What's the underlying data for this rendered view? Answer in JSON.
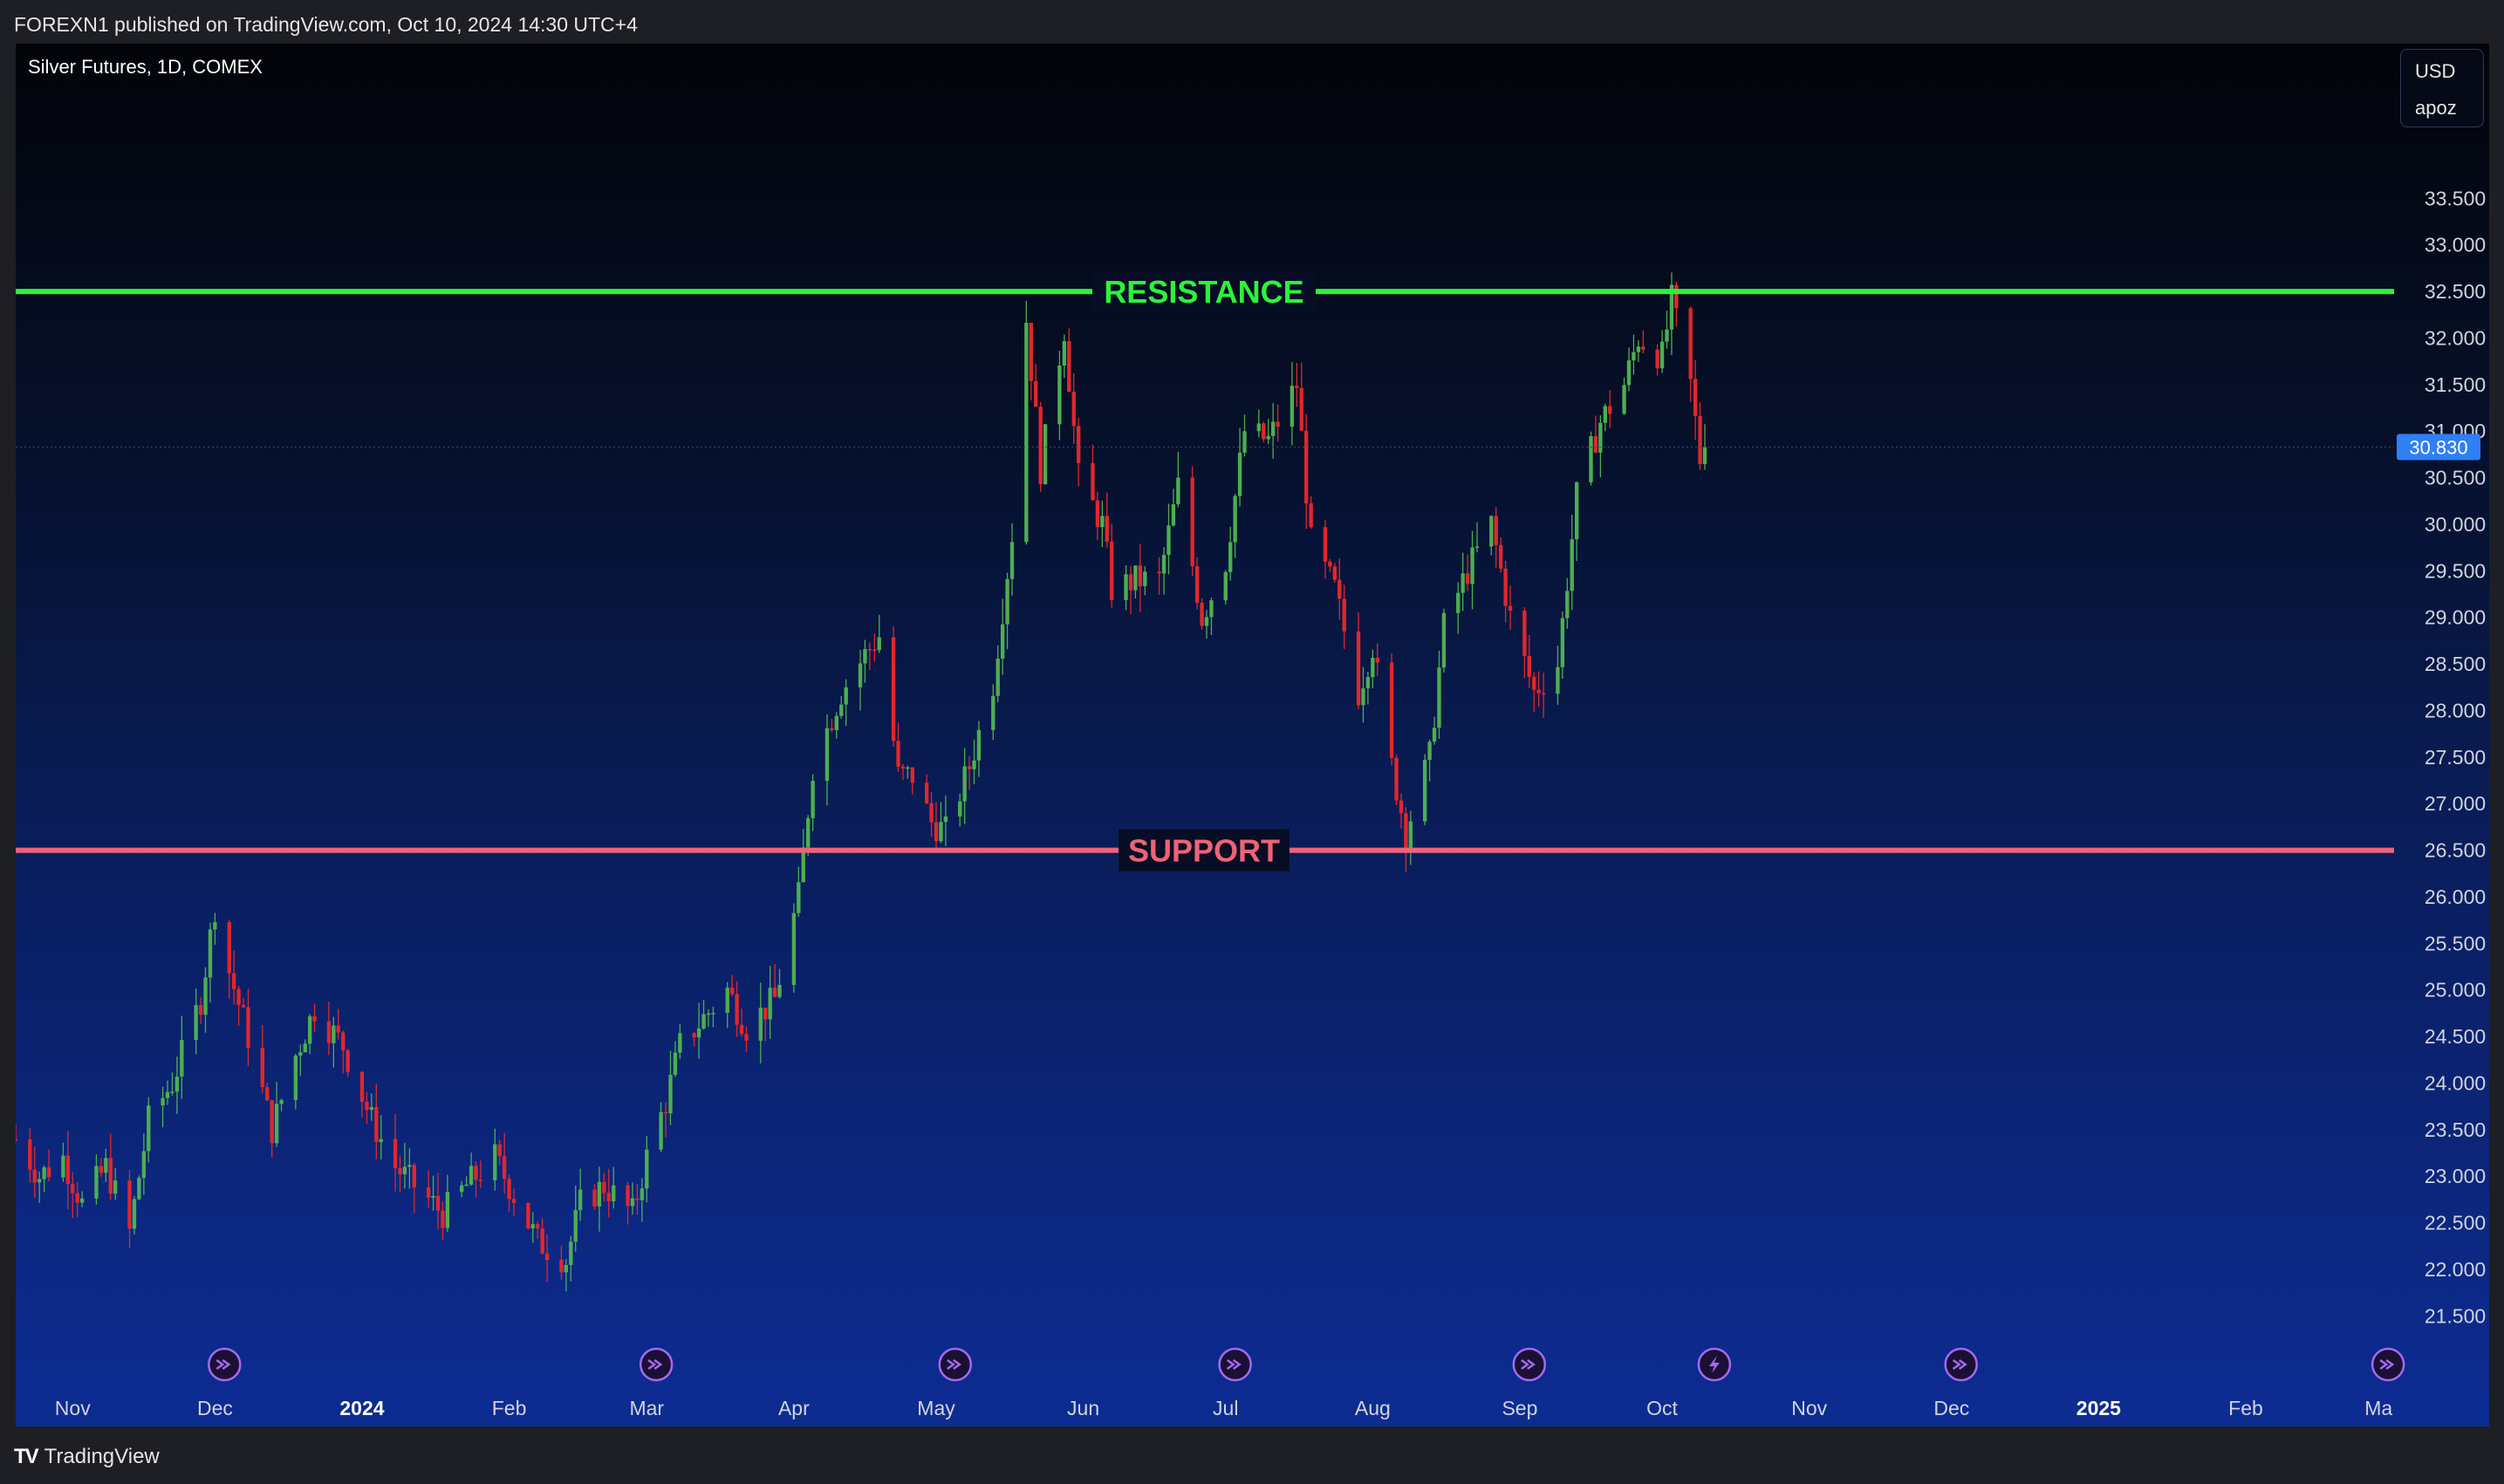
{
  "header": {
    "text": "FOREXN1 published on TradingView.com, Oct 10, 2024 14:30 UTC+4"
  },
  "symbol": {
    "label": "Silver Futures, 1D, COMEX"
  },
  "currency": {
    "code": "USD",
    "unit": "apoz"
  },
  "footer": {
    "brand": "TradingView",
    "logo": "TV"
  },
  "colors": {
    "up": "#4caf50",
    "down": "#e0272d",
    "resistance": "#2cf33a",
    "support": "#f06277",
    "last_price_bg": "#2f7ff5",
    "event_icon": "#a569f0"
  },
  "chart_data": {
    "type": "candlestick",
    "title": "Silver Futures, 1D, COMEX",
    "y_axis": {
      "ylim": [
        21.25,
        33.85
      ],
      "ticks": [
        "21.500",
        "22.000",
        "22.500",
        "23.000",
        "23.500",
        "24.000",
        "24.500",
        "25.000",
        "25.500",
        "26.000",
        "26.500",
        "27.000",
        "27.500",
        "28.000",
        "28.500",
        "29.000",
        "29.500",
        "30.000",
        "30.500",
        "31.000",
        "31.500",
        "32.000",
        "32.500",
        "33.000",
        "33.500"
      ]
    },
    "x_axis": {
      "labels": [
        {
          "text": "Nov",
          "bold": false
        },
        {
          "text": "Dec",
          "bold": false
        },
        {
          "text": "2024",
          "bold": true
        },
        {
          "text": "Feb",
          "bold": false
        },
        {
          "text": "Mar",
          "bold": false
        },
        {
          "text": "Apr",
          "bold": false
        },
        {
          "text": "May",
          "bold": false
        },
        {
          "text": "Jun",
          "bold": false
        },
        {
          "text": "Jul",
          "bold": false
        },
        {
          "text": "Aug",
          "bold": false
        },
        {
          "text": "Sep",
          "bold": false
        },
        {
          "text": "Oct",
          "bold": false
        },
        {
          "text": "Nov",
          "bold": false
        },
        {
          "text": "Dec",
          "bold": false
        },
        {
          "text": "2025",
          "bold": true
        },
        {
          "text": "Feb",
          "bold": false
        },
        {
          "text": "Ma",
          "bold": false
        }
      ],
      "range": [
        "2023-10-20",
        "2025-03-05"
      ]
    },
    "last_price": {
      "value": 30.83,
      "label": "30.830"
    },
    "levels": [
      {
        "name": "RESISTANCE",
        "value": 32.5,
        "color": "#2cf33a"
      },
      {
        "name": "SUPPORT",
        "value": 26.5,
        "color": "#f06277"
      }
    ],
    "events": [
      {
        "date": "2023-12-03",
        "type": "fast-forward"
      },
      {
        "date": "2024-03-03",
        "type": "fast-forward"
      },
      {
        "date": "2024-05-05",
        "type": "fast-forward"
      },
      {
        "date": "2024-07-03",
        "type": "fast-forward"
      },
      {
        "date": "2024-09-03",
        "type": "fast-forward"
      },
      {
        "date": "2024-10-12",
        "type": "lightning"
      },
      {
        "date": "2024-12-03",
        "type": "fast-forward"
      },
      {
        "date": "2025-03-03",
        "type": "fast-forward"
      }
    ],
    "closes": [
      [
        "2023-10-20",
        23.4
      ],
      [
        "2023-10-25",
        23.0
      ],
      [
        "2023-10-30",
        23.2
      ],
      [
        "2023-11-03",
        22.7
      ],
      [
        "2023-11-08",
        23.1
      ],
      [
        "2023-11-13",
        22.4
      ],
      [
        "2023-11-17",
        23.6
      ],
      [
        "2023-11-22",
        24.0
      ],
      [
        "2023-11-28",
        24.9
      ],
      [
        "2023-12-01",
        25.9
      ],
      [
        "2023-12-04",
        25.2
      ],
      [
        "2023-12-08",
        24.5
      ],
      [
        "2023-12-13",
        23.5
      ],
      [
        "2023-12-18",
        24.3
      ],
      [
        "2023-12-22",
        24.8
      ],
      [
        "2023-12-28",
        24.4
      ],
      [
        "2024-01-03",
        23.6
      ],
      [
        "2024-01-08",
        23.1
      ],
      [
        "2024-01-12",
        22.9
      ],
      [
        "2024-01-18",
        22.6
      ],
      [
        "2024-01-23",
        22.9
      ],
      [
        "2024-01-29",
        23.2
      ],
      [
        "2024-02-02",
        22.8
      ],
      [
        "2024-02-07",
        22.3
      ],
      [
        "2024-02-13",
        22.1
      ],
      [
        "2024-02-16",
        22.7
      ],
      [
        "2024-02-21",
        22.9
      ],
      [
        "2024-02-27",
        22.6
      ],
      [
        "2024-03-01",
        23.2
      ],
      [
        "2024-03-05",
        23.8
      ],
      [
        "2024-03-08",
        24.4
      ],
      [
        "2024-03-13",
        24.7
      ],
      [
        "2024-03-18",
        25.0
      ],
      [
        "2024-03-22",
        24.6
      ],
      [
        "2024-03-28",
        24.9
      ],
      [
        "2024-04-02",
        26.0
      ],
      [
        "2024-04-05",
        27.4
      ],
      [
        "2024-04-11",
        28.2
      ],
      [
        "2024-04-16",
        28.6
      ],
      [
        "2024-04-19",
        28.8
      ],
      [
        "2024-04-23",
        27.3
      ],
      [
        "2024-04-26",
        27.3
      ],
      [
        "2024-04-30",
        26.8
      ],
      [
        "2024-05-03",
        26.7
      ],
      [
        "2024-05-08",
        27.4
      ],
      [
        "2024-05-13",
        28.3
      ],
      [
        "2024-05-17",
        29.9
      ],
      [
        "2024-05-20",
        32.2
      ],
      [
        "2024-05-23",
        30.6
      ],
      [
        "2024-05-28",
        32.1
      ],
      [
        "2024-05-31",
        30.5
      ],
      [
        "2024-06-05",
        30.0
      ],
      [
        "2024-06-07",
        29.3
      ],
      [
        "2024-06-12",
        29.4
      ],
      [
        "2024-06-17",
        29.4
      ],
      [
        "2024-06-21",
        30.4
      ],
      [
        "2024-06-26",
        29.0
      ],
      [
        "2024-07-01",
        29.6
      ],
      [
        "2024-07-05",
        31.0
      ],
      [
        "2024-07-10",
        30.9
      ],
      [
        "2024-07-16",
        31.5
      ],
      [
        "2024-07-19",
        29.8
      ],
      [
        "2024-07-24",
        29.3
      ],
      [
        "2024-07-29",
        28.2
      ],
      [
        "2024-08-01",
        28.7
      ],
      [
        "2024-08-05",
        27.4
      ],
      [
        "2024-08-08",
        26.7
      ],
      [
        "2024-08-13",
        27.5
      ],
      [
        "2024-08-16",
        28.9
      ],
      [
        "2024-08-21",
        29.5
      ],
      [
        "2024-08-26",
        30.0
      ],
      [
        "2024-08-30",
        29.0
      ],
      [
        "2024-09-04",
        28.2
      ],
      [
        "2024-09-09",
        28.5
      ],
      [
        "2024-09-13",
        30.3
      ],
      [
        "2024-09-18",
        31.1
      ],
      [
        "2024-09-23",
        31.5
      ],
      [
        "2024-09-26",
        32.0
      ],
      [
        "2024-10-01",
        31.8
      ],
      [
        "2024-10-03",
        32.4
      ],
      [
        "2024-10-07",
        31.5
      ],
      [
        "2024-10-09",
        30.7
      ],
      [
        "2024-10-10",
        30.83
      ]
    ]
  }
}
